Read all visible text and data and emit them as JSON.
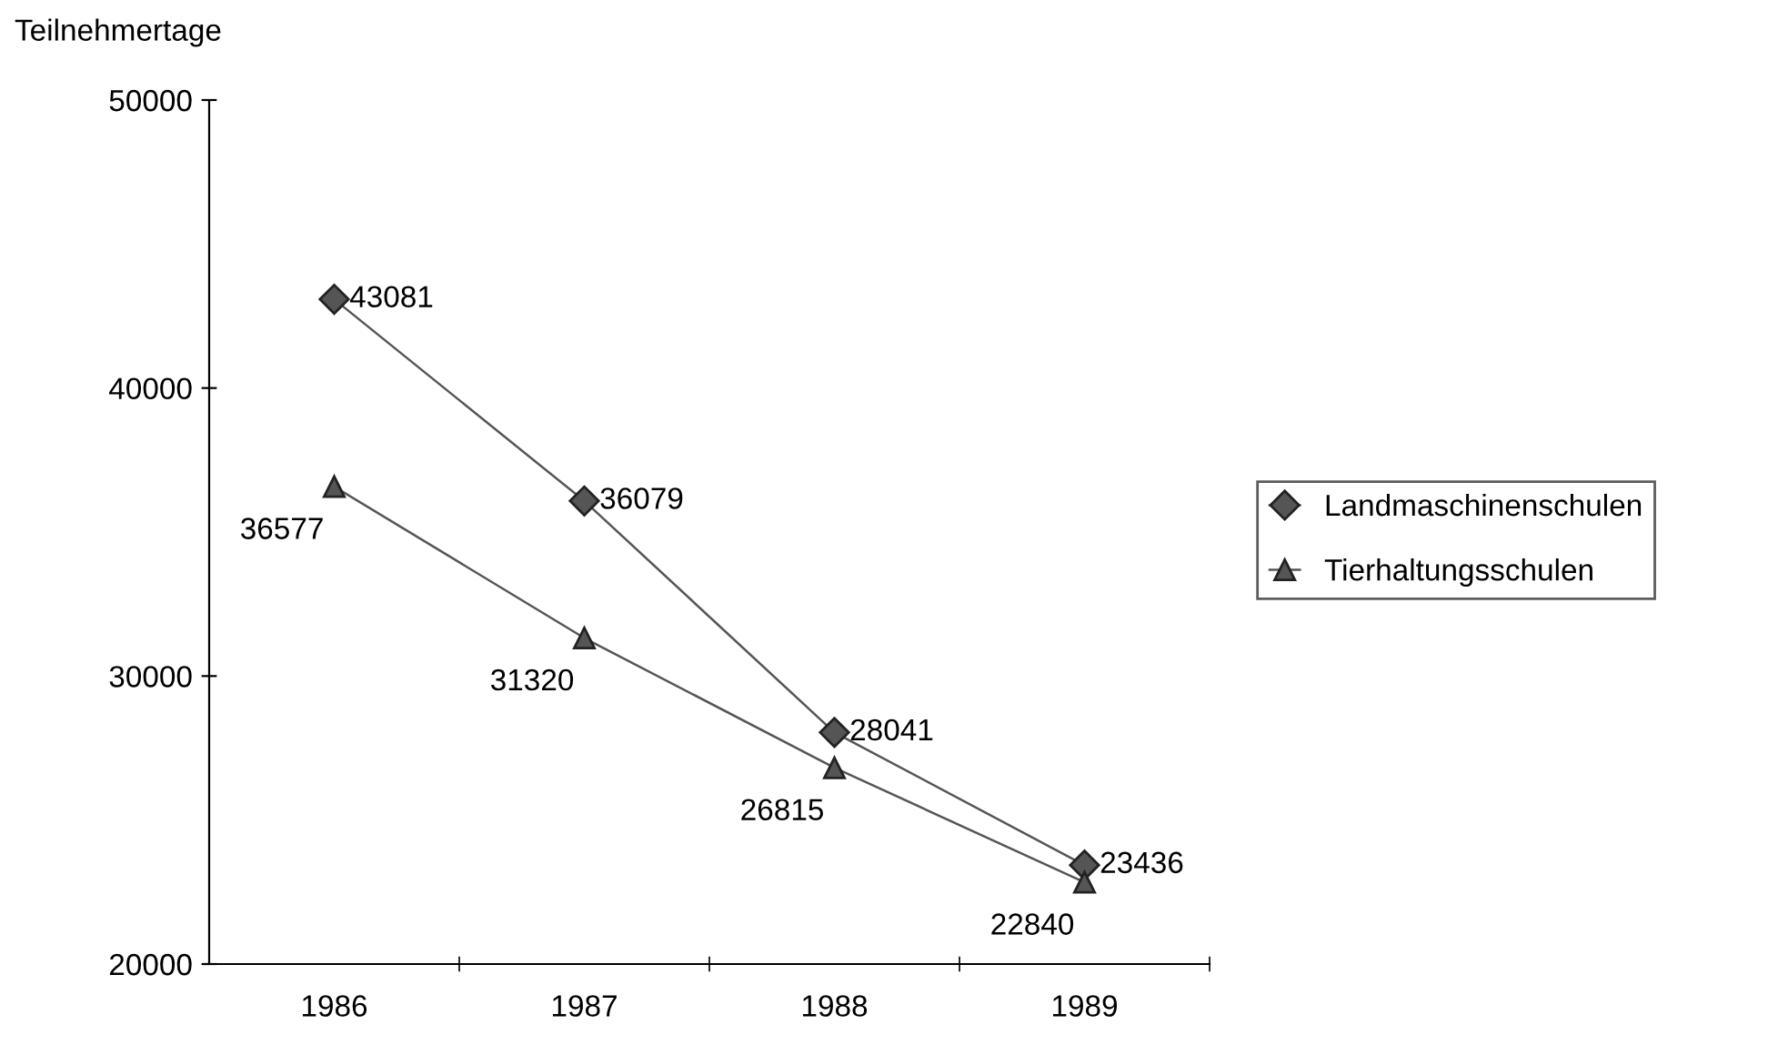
{
  "chart_data": {
    "type": "line",
    "ylabel": "Teilnehmertage",
    "categories": [
      "1986",
      "1987",
      "1988",
      "1989"
    ],
    "series": [
      {
        "name": "Landmaschinenschulen",
        "color": "#555555",
        "marker": "diamond",
        "values": [
          43081,
          36079,
          28041,
          23436
        ]
      },
      {
        "name": "Tierhaltungsschulen",
        "color": "#555555",
        "marker": "triangle",
        "values": [
          36577,
          31320,
          26815,
          22840
        ]
      }
    ],
    "ylim": [
      20000,
      50000
    ],
    "yticks": [
      20000,
      30000,
      40000,
      50000
    ],
    "data_labels": true,
    "grid": false,
    "legend": "right"
  }
}
